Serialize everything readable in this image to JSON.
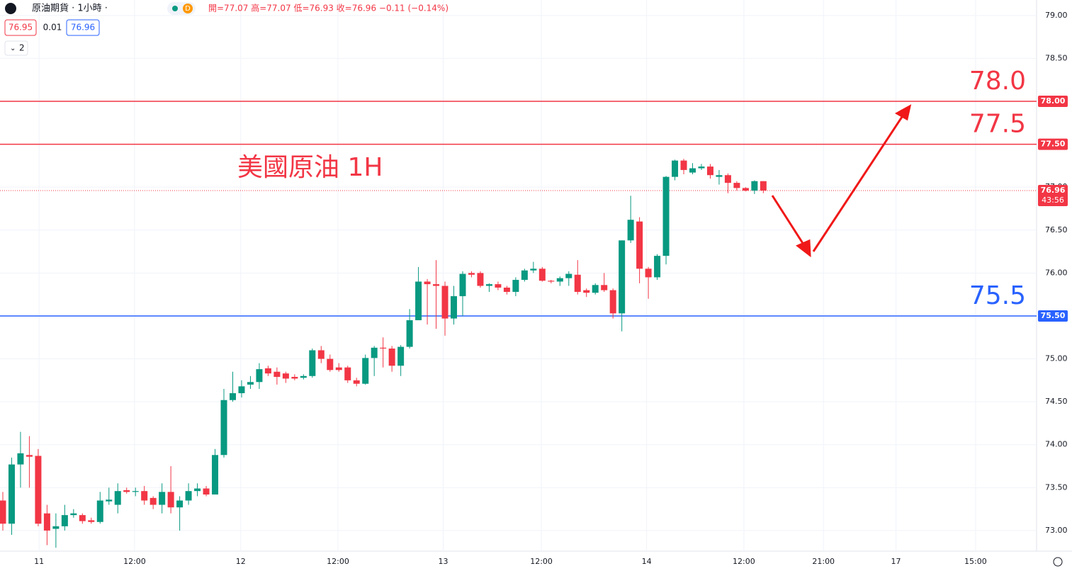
{
  "chart_data": {
    "type": "candlestick",
    "symbol": "原油期貨 · 1小時 ·",
    "flag": "D",
    "ohlc_header": "開=77.07  高=77.07  低=76.93  收=76.96  −0.11 (−0.14%)",
    "bid": "76.95",
    "spread": "0.01",
    "ask": "76.96",
    "indicator_count": "2",
    "annotation": "美國原油 1H",
    "up_color": "#089981",
    "down_color": "#f23645",
    "open": [
      73.35,
      73.08,
      73.77,
      73.88,
      73.87,
      73.2,
      73.02,
      73.05,
      73.18,
      73.18,
      73.12,
      73.1,
      73.34,
      73.3,
      73.47,
      73.45,
      73.46,
      73.38,
      73.3,
      73.45,
      73.27,
      73.35,
      73.46,
      73.49,
      73.42,
      73.88,
      74.52,
      74.6,
      74.7,
      74.73,
      74.89,
      74.85,
      74.83,
      74.79,
      74.78,
      74.8,
      75.1,
      75.0,
      74.9,
      74.9,
      74.75,
      74.71,
      75.01,
      75.13,
      75.12,
      74.92,
      75.14,
      75.45,
      75.9,
      75.87,
      75.85,
      75.47,
      75.73,
      76.0,
      76.0,
      75.85,
      75.87,
      75.83,
      75.78,
      75.92,
      76.03,
      76.05,
      75.91,
      75.9,
      75.94,
      75.98,
      75.8,
      75.77,
      75.86,
      75.8,
      75.53,
      76.38,
      76.6,
      76.05,
      75.95,
      76.2,
      77.12,
      77.31,
      77.17,
      77.22,
      77.24,
      77.12,
      77.14,
      77.05,
      76.99,
      76.96,
      77.07
    ],
    "high": [
      73.45,
      73.85,
      74.15,
      74.1,
      73.95,
      73.3,
      73.2,
      73.3,
      73.25,
      73.2,
      73.15,
      73.45,
      73.5,
      73.55,
      73.5,
      73.5,
      73.52,
      73.4,
      73.55,
      73.75,
      73.4,
      73.55,
      73.55,
      73.52,
      73.95,
      74.65,
      74.85,
      74.75,
      74.8,
      74.95,
      74.92,
      74.9,
      74.85,
      74.82,
      74.82,
      75.12,
      75.15,
      75.05,
      74.95,
      74.92,
      74.78,
      75.05,
      75.15,
      75.25,
      75.15,
      75.16,
      75.58,
      76.07,
      75.93,
      76.15,
      75.9,
      75.85,
      76.02,
      76.02,
      76.02,
      75.88,
      75.9,
      75.85,
      75.95,
      76.05,
      76.13,
      76.07,
      75.92,
      75.96,
      76.02,
      76.15,
      75.82,
      75.88,
      76.0,
      75.82,
      76.38,
      76.9,
      76.65,
      76.07,
      76.22,
      77.13,
      77.32,
      77.33,
      77.28,
      77.27,
      77.27,
      77.2,
      77.16,
      77.07,
      77.0,
      77.08,
      77.07
    ],
    "low": [
      73.0,
      72.95,
      73.5,
      73.5,
      73.05,
      72.83,
      72.8,
      73.0,
      73.15,
      73.08,
      73.08,
      73.08,
      73.3,
      73.2,
      73.43,
      73.4,
      73.3,
      73.25,
      73.2,
      73.2,
      73.0,
      73.3,
      73.4,
      73.4,
      73.42,
      73.85,
      74.5,
      74.55,
      74.65,
      74.65,
      74.8,
      74.7,
      74.72,
      74.75,
      74.76,
      74.78,
      74.95,
      74.85,
      74.85,
      74.72,
      74.68,
      74.7,
      74.8,
      74.9,
      74.85,
      74.8,
      75.12,
      75.45,
      75.4,
      75.35,
      75.27,
      75.4,
      75.5,
      75.95,
      75.83,
      75.78,
      75.8,
      75.75,
      75.73,
      75.9,
      76.0,
      75.9,
      75.88,
      75.85,
      75.85,
      75.75,
      75.72,
      75.75,
      75.78,
      75.47,
      75.32,
      76.35,
      75.88,
      75.7,
      75.92,
      76.1,
      77.08,
      77.15,
      77.15,
      77.2,
      77.1,
      77.03,
      76.93,
      76.96,
      76.95,
      76.92,
      76.93
    ],
    "close": [
      73.08,
      73.77,
      73.9,
      73.86,
      73.08,
      73.0,
      73.05,
      73.18,
      73.2,
      73.11,
      73.1,
      73.35,
      73.36,
      73.46,
      73.45,
      73.46,
      73.35,
      73.3,
      73.45,
      73.27,
      73.35,
      73.46,
      73.49,
      73.42,
      73.88,
      74.52,
      74.6,
      74.68,
      74.73,
      74.88,
      74.83,
      74.79,
      74.77,
      74.77,
      74.8,
      75.1,
      75.0,
      74.87,
      74.87,
      74.75,
      74.71,
      75.01,
      75.13,
      75.12,
      74.92,
      75.14,
      75.45,
      75.9,
      75.87,
      75.85,
      75.47,
      75.73,
      75.99,
      75.98,
      75.85,
      75.87,
      75.83,
      75.78,
      75.92,
      76.03,
      76.05,
      75.91,
      75.9,
      75.94,
      75.99,
      75.78,
      75.77,
      75.86,
      75.8,
      75.53,
      76.38,
      76.62,
      76.05,
      75.95,
      76.2,
      77.12,
      77.31,
      77.2,
      77.22,
      77.24,
      77.14,
      77.14,
      77.05,
      76.99,
      76.96,
      77.07,
      76.96
    ],
    "xlim": [
      -0.32,
      116.9
    ],
    "xticks": [
      {
        "value": 4.1,
        "label": "11"
      },
      {
        "value": 14.9,
        "label": "12:00"
      },
      {
        "value": 26.9,
        "label": "12"
      },
      {
        "value": 37.9,
        "label": "12:00"
      },
      {
        "value": 49.8,
        "label": "13"
      },
      {
        "value": 60.9,
        "label": "12:00"
      },
      {
        "value": 72.8,
        "label": "14"
      },
      {
        "value": 83.8,
        "label": "12:00"
      },
      {
        "value": 92.8,
        "label": "21:00"
      },
      {
        "value": 101.0,
        "label": "17"
      },
      {
        "value": 110.0,
        "label": "15:00"
      }
    ],
    "ylim": [
      72.76,
      79.18
    ],
    "yticks": [
      {
        "value": 73,
        "label": "73.00"
      },
      {
        "value": 73.5,
        "label": "73.50"
      },
      {
        "value": 74,
        "label": "74.00"
      },
      {
        "value": 74.5,
        "label": "74.50"
      },
      {
        "value": 75,
        "label": "75.00"
      },
      {
        "value": 75.5,
        "label": "75.50"
      },
      {
        "value": 76,
        "label": "76.00"
      },
      {
        "value": 76.5,
        "label": "76.50"
      },
      {
        "value": 77,
        "label": "77.00"
      },
      {
        "value": 77.5,
        "label": "77.50"
      },
      {
        "value": 78,
        "label": "78.00"
      },
      {
        "value": 78.5,
        "label": "78.50"
      },
      {
        "value": 79,
        "label": "79.00"
      }
    ],
    "grid": true,
    "levels": [
      {
        "value": 78,
        "label": "78.00",
        "annotation": "78.0",
        "color": "#f23645"
      },
      {
        "value": 77.5,
        "label": "77.50",
        "annotation": "77.5",
        "color": "#f23645"
      },
      {
        "value": 75.5,
        "label": "75.50",
        "annotation": "75.5",
        "color": "#2962ff"
      }
    ],
    "last_price": {
      "value": 76.96,
      "label": "76.96",
      "countdown": "43:56",
      "color": "#f23645"
    }
  }
}
